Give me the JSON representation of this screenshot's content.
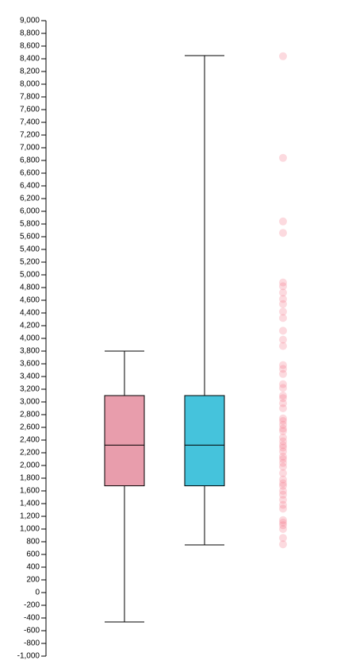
{
  "chart_data": {
    "type": "box",
    "title": "",
    "xlabel": "",
    "ylabel": "",
    "ylim": [
      -1000,
      9000
    ],
    "y_tick_step": 200,
    "grid": false,
    "boxes": [
      {
        "id": "box-1",
        "color": "#e89dac",
        "whisker_low": -460,
        "q1": 1680,
        "median": 2320,
        "q3": 3100,
        "whisker_high": 3800
      },
      {
        "id": "box-2",
        "color": "#45c3dc",
        "whisker_low": 750,
        "q1": 1680,
        "median": 2320,
        "q3": 3100,
        "whisker_high": 8450
      }
    ],
    "points": {
      "color": "#f36b7f",
      "opacity": 0.25,
      "values": [
        8440,
        6840,
        5840,
        5660,
        4880,
        4820,
        4720,
        4620,
        4540,
        4420,
        4320,
        4120,
        3980,
        3880,
        3580,
        3520,
        3440,
        3280,
        3220,
        3100,
        3060,
        2980,
        2900,
        2740,
        2700,
        2640,
        2580,
        2540,
        2440,
        2380,
        2320,
        2280,
        2220,
        2140,
        2100,
        2040,
        1980,
        1880,
        1780,
        1720,
        1680,
        1600,
        1540,
        1460,
        1380,
        1320,
        1140,
        1100,
        1060,
        1000,
        860,
        760
      ]
    }
  }
}
